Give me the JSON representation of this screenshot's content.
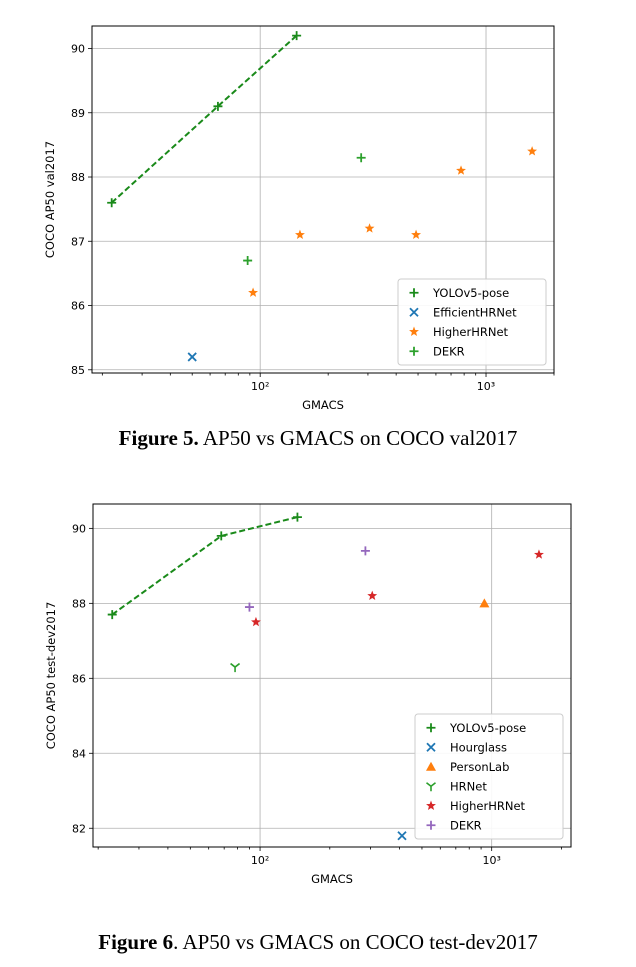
{
  "figures": [
    {
      "id": "fig5",
      "caption_label": "Figure 5.",
      "caption_text": " AP50 vs GMACS on COCO val2017",
      "chart_data": {
        "type": "scatter",
        "xlabel": "GMACS",
        "ylabel": "COCO AP50 val2017",
        "xscale": "log",
        "xlim": [
          18,
          2000
        ],
        "ylim": [
          84.95,
          90.35
        ],
        "xticks": [
          {
            "value": 100,
            "label": "10²"
          },
          {
            "value": 1000,
            "label": "10³"
          }
        ],
        "yticks": [
          85,
          86,
          87,
          88,
          89,
          90
        ],
        "grid": true,
        "legend_position": "lower-right",
        "series": [
          {
            "name": "YOLOv5-pose",
            "marker": "plus",
            "color": "#1a8a1a",
            "line": "dashed",
            "points": [
              [
                22,
                87.6
              ],
              [
                65,
                89.1
              ],
              [
                145,
                90.2
              ]
            ]
          },
          {
            "name": "EfficientHRNet",
            "marker": "x",
            "color": "#1f77b4",
            "points": [
              [
                50,
                85.2
              ]
            ]
          },
          {
            "name": "HigherHRNet",
            "marker": "star",
            "color": "#ff7f0e",
            "points": [
              [
                93,
                86.2
              ],
              [
                150,
                87.1
              ],
              [
                305,
                87.2
              ],
              [
                490,
                87.1
              ],
              [
                775,
                88.1
              ],
              [
                1600,
                88.4
              ]
            ]
          },
          {
            "name": "DEKR",
            "marker": "plus",
            "color": "#2ca02c",
            "points": [
              [
                88,
                86.7
              ],
              [
                280,
                88.3
              ]
            ]
          }
        ]
      }
    },
    {
      "id": "fig6",
      "caption_label": "Figure 6",
      "caption_text": ". AP50 vs GMACS on COCO test-dev2017",
      "chart_data": {
        "type": "scatter",
        "xlabel": "GMACS",
        "ylabel": "COCO AP50 test-dev2017",
        "xscale": "log",
        "xlim": [
          19,
          2200
        ],
        "ylim": [
          81.5,
          90.65
        ],
        "xticks": [
          {
            "value": 100,
            "label": "10²"
          },
          {
            "value": 1000,
            "label": "10³"
          }
        ],
        "yticks": [
          82,
          84,
          86,
          88,
          90
        ],
        "grid": true,
        "legend_position": "lower-right",
        "series": [
          {
            "name": "YOLOv5-pose",
            "marker": "plus",
            "color": "#1a8a1a",
            "line": "dashed",
            "points": [
              [
                23,
                87.7
              ],
              [
                68,
                89.8
              ],
              [
                145,
                90.3
              ]
            ]
          },
          {
            "name": "Hourglass",
            "marker": "x",
            "color": "#1f77b4",
            "points": [
              [
                410,
                81.8
              ]
            ]
          },
          {
            "name": "PersonLab",
            "marker": "triangle",
            "color": "#ff7f0e",
            "points": [
              [
                930,
                88.0
              ]
            ]
          },
          {
            "name": "HRNet",
            "marker": "tri_down",
            "color": "#2ca02c",
            "points": [
              [
                78,
                86.3
              ]
            ]
          },
          {
            "name": "HigherHRNet",
            "marker": "star",
            "color": "#d62728",
            "points": [
              [
                96,
                87.5
              ],
              [
                305,
                88.2
              ],
              [
                1600,
                89.3
              ]
            ]
          },
          {
            "name": "DEKR",
            "marker": "plus",
            "color": "#9467bd",
            "points": [
              [
                90,
                87.9
              ],
              [
                285,
                89.4
              ]
            ]
          }
        ]
      }
    }
  ]
}
